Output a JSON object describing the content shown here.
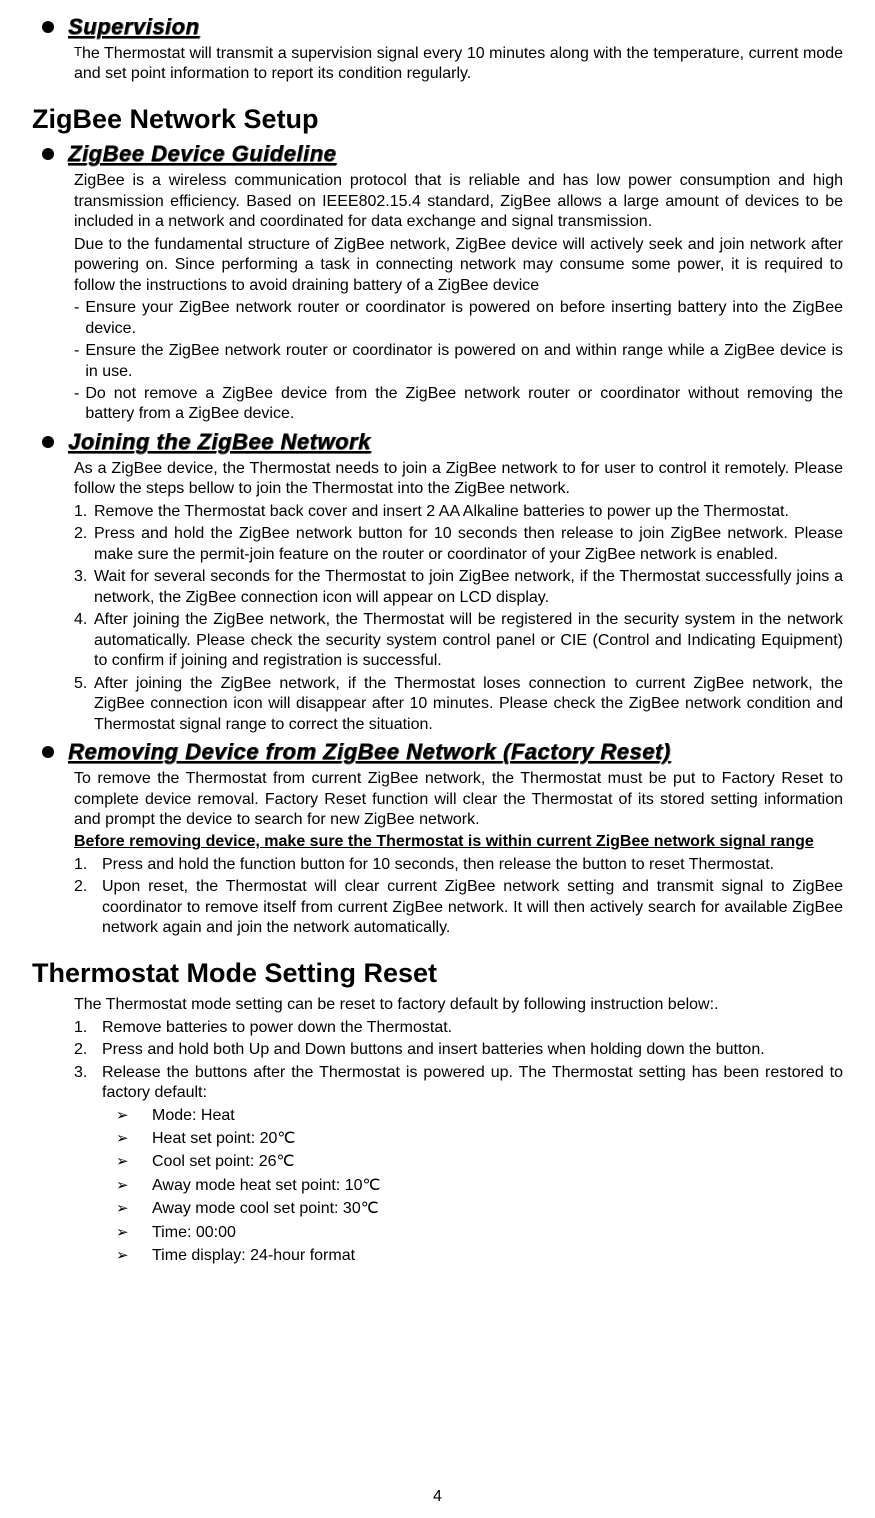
{
  "page_number": "4",
  "sections": {
    "supervision": {
      "title": "Supervision",
      "prefix": "T",
      "body": "he Thermostat will transmit a supervision signal every 10 minutes along with the temperature, current mode and set point information to report its condition regularly."
    },
    "zigbee_setup": {
      "title": "ZigBee Network Setup",
      "guideline": {
        "title": "ZigBee Device Guideline",
        "p1": "ZigBee is a wireless communication protocol that is reliable and has low power consumption and high transmission efficiency.   Based on IEEE802.15.4 standard, ZigBee allows a large amount of devices to be included in a network and coordinated for data exchange and signal transmission.",
        "p2": "Due to the fundamental structure of ZigBee network, ZigBee device will actively seek and join network after powering on. Since performing a task in connecting network may consume some power, it is required to follow the instructions to avoid draining battery of a ZigBee device",
        "dashes": [
          "Ensure your ZigBee network router or coordinator is powered on before inserting battery into the ZigBee device.",
          "Ensure the ZigBee network router or coordinator is powered on and within range while a ZigBee device is in use.",
          "Do not remove a ZigBee device from the ZigBee network router or coordinator without removing the battery from a ZigBee device."
        ]
      },
      "joining": {
        "title": "Joining the ZigBee Network",
        "intro": "As a ZigBee device, the Thermostat needs to join a ZigBee network to for user to control it remotely. Please follow the steps bellow to join the Thermostat into the ZigBee network.",
        "steps": [
          "Remove the Thermostat back cover and insert 2 AA Alkaline batteries to power up the Thermostat.",
          "Press and hold the ZigBee network button for 10 seconds then release to join ZigBee network. Please make sure the permit-join feature on the router or coordinator of your ZigBee network is enabled.",
          "Wait for several seconds for the Thermostat to join ZigBee network, if the Thermostat successfully joins a network, the ZigBee connection icon will appear on LCD display.",
          "After joining the ZigBee network, the Thermostat will be registered in the security system in the network automatically. Please check the security system control panel or CIE (Control and Indicating Equipment) to confirm if joining and registration is successful.",
          "After joining the ZigBee network, if the Thermostat loses connection to current ZigBee network, the ZigBee connection icon will disappear after 10 minutes. Please check the ZigBee network condition and Thermostat signal range to correct the situation."
        ]
      },
      "removing": {
        "title": "Removing Device from ZigBee Network (Factory Reset)",
        "p1": "To remove the Thermostat from current ZigBee network, the Thermostat must be put to Factory Reset to complete device removal. Factory Reset function will clear the Thermostat of its stored setting information and prompt the device to search for new ZigBee network.",
        "warn": "Before removing device, make sure the Thermostat is within current ZigBee network signal range",
        "steps": [
          "Press and hold the function button for 10 seconds, then release the button to reset Thermostat.",
          "Upon reset, the Thermostat will clear current ZigBee network setting and transmit signal to ZigBee coordinator to remove itself from current ZigBee network. It will then actively search for available ZigBee network again and join the network automatically."
        ]
      }
    },
    "mode_reset": {
      "title": "Thermostat Mode Setting Reset",
      "intro": "The Thermostat mode setting can be reset to factory default by following instruction below:.",
      "steps": [
        "Remove batteries to power down the Thermostat.",
        "Press and hold both Up and Down buttons and insert batteries when holding down the button.",
        "Release the buttons after the Thermostat is powered up. The Thermostat setting has been restored to factory default:"
      ],
      "defaults": [
        "Mode: Heat",
        "Heat set point: 20℃",
        "Cool set point: 26℃",
        "Away mode heat set point: 10℃",
        "Away mode cool set point: 30℃",
        "Time: 00:00",
        "Time display: 24-hour format"
      ]
    }
  },
  "markers": {
    "dash": "-",
    "chevron": "➢",
    "step_nums_short": [
      "1.",
      "2.",
      "3.",
      "4.",
      "5."
    ],
    "step_nums_wide": [
      "1.",
      "2.",
      "3."
    ]
  }
}
